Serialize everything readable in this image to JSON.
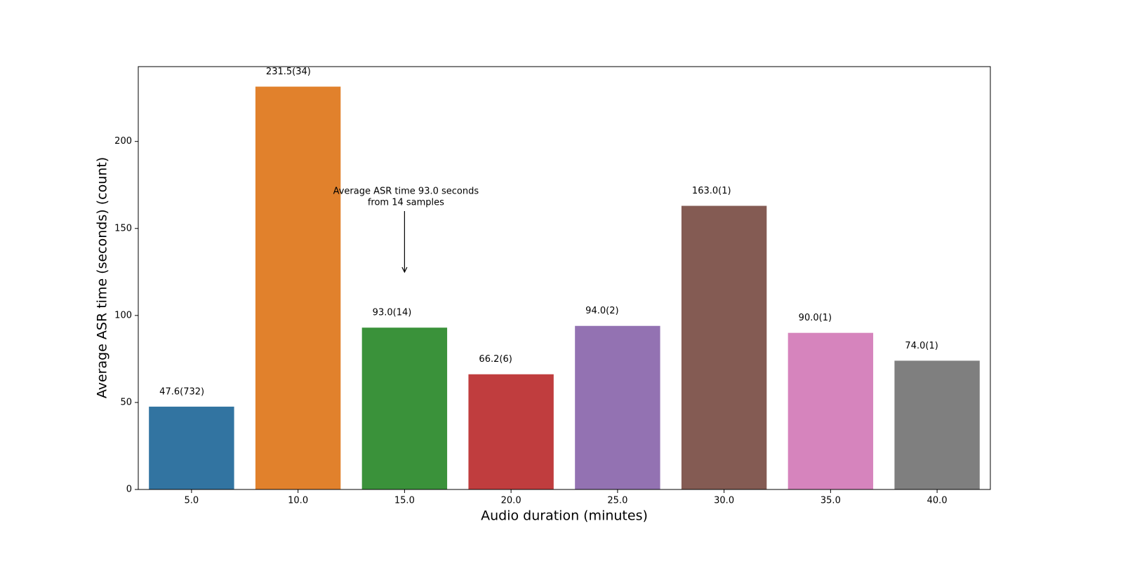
{
  "chart_data": {
    "type": "bar",
    "x_label": "Audio duration (minutes)",
    "y_label": "Average ASR time (seconds) (count)",
    "categories": [
      "5.0",
      "10.0",
      "15.0",
      "20.0",
      "25.0",
      "30.0",
      "35.0",
      "40.0"
    ],
    "values": [
      47.6,
      231.5,
      93.0,
      66.2,
      94.0,
      163.0,
      90.0,
      74.0
    ],
    "value_labels": [
      "47.6(732)",
      "231.5(34)",
      "93.0(14)",
      "66.2(6)",
      "94.0(2)",
      "163.0(1)",
      "90.0(1)",
      "74.0(1)"
    ],
    "colors": [
      "#3274a1",
      "#e1812c",
      "#3a923a",
      "#c03d3e",
      "#9372b2",
      "#845b53",
      "#d684bd",
      "#7f7f7f"
    ],
    "ylim": [
      0,
      243
    ],
    "yticks": [
      0,
      50,
      100,
      150,
      200
    ],
    "annotation": [
      "Average ASR time 93.0 seconds",
      "from 14 samples"
    ]
  }
}
